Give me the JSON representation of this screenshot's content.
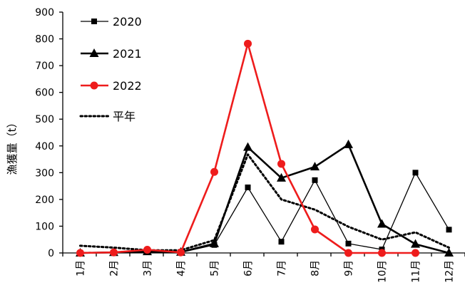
{
  "chart_data": {
    "type": "line",
    "ylabel": "漁獲量（t）",
    "xlabel": "",
    "ylim": [
      0,
      900
    ],
    "yticks": [
      0,
      100,
      200,
      300,
      400,
      500,
      600,
      700,
      800,
      900
    ],
    "categories": [
      "1月",
      "2月",
      "3月",
      "4月",
      "5月",
      "6月",
      "7月",
      "8月",
      "9月",
      "10月",
      "11月",
      "12月"
    ],
    "grid": false,
    "legend_position": "top-left",
    "series": [
      {
        "name": "2020",
        "color": "#000000",
        "marker": "square",
        "line": "solid-thin",
        "values": [
          0,
          2,
          5,
          2,
          30,
          245,
          42,
          272,
          35,
          13,
          300,
          87
        ]
      },
      {
        "name": "2021",
        "color": "#000000",
        "marker": "triangle",
        "line": "solid-thick",
        "values": [
          0,
          2,
          5,
          3,
          35,
          395,
          280,
          322,
          405,
          108,
          33,
          0
        ]
      },
      {
        "name": "2022",
        "color": "#ee1c1c",
        "marker": "circle",
        "line": "solid-thick",
        "values": [
          0,
          2,
          12,
          2,
          303,
          782,
          333,
          88,
          0,
          0,
          0,
          null
        ]
      },
      {
        "name": "平年",
        "color": "#000000",
        "marker": "none",
        "line": "dotted",
        "values": [
          27,
          20,
          10,
          10,
          48,
          368,
          200,
          162,
          98,
          50,
          77,
          20
        ]
      }
    ]
  }
}
